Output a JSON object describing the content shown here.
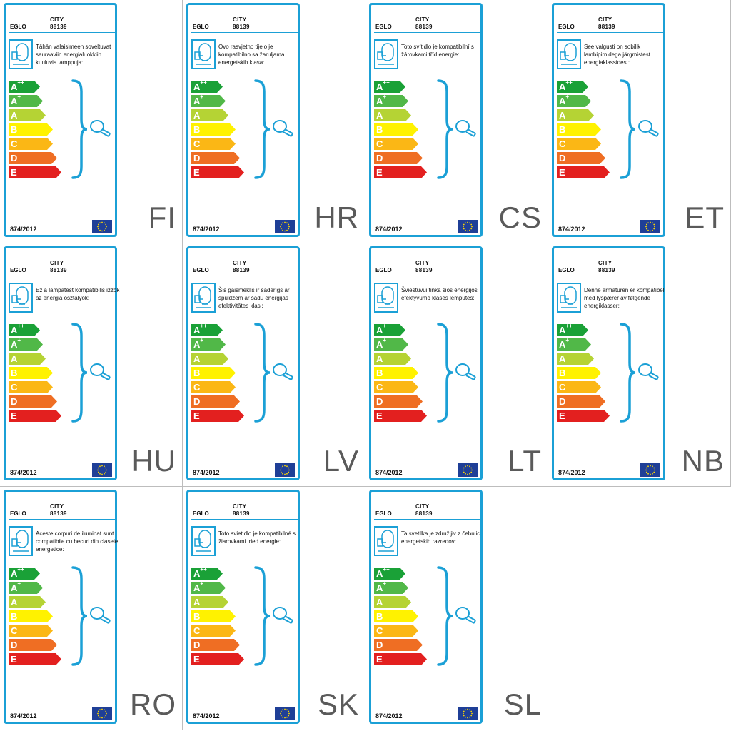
{
  "colors": {
    "frame": "#1ba0d6",
    "grid_line": "#bdbdbd",
    "code_text": "#5a5a5a",
    "eu_blue": "#1f3f97",
    "eu_star": "#ffd800"
  },
  "common": {
    "brand": "EGLO",
    "product_name": "CITY",
    "product_code": "88139",
    "regulation": "874/2012",
    "icons": {
      "lamp": "lamp-fixture-icon",
      "bulb": "light-bulb-icon",
      "brace": "bracket-icon",
      "eu_flag": "eu-flag-icon"
    },
    "energy_classes": [
      {
        "letter": "A",
        "sup": "++",
        "color": "#1aa137"
      },
      {
        "letter": "A",
        "sup": "+",
        "color": "#51b848"
      },
      {
        "letter": "A",
        "sup": "",
        "color": "#b5d334"
      },
      {
        "letter": "B",
        "sup": "",
        "color": "#fff200"
      },
      {
        "letter": "C",
        "sup": "",
        "color": "#fbb715"
      },
      {
        "letter": "D",
        "sup": "",
        "color": "#ef6e23"
      },
      {
        "letter": "E",
        "sup": "",
        "color": "#e3201f"
      }
    ]
  },
  "labels": [
    {
      "code": "FI",
      "text": "Tähän valaisimeen soveltuvat seuraaviin energialuokkiin kuuluvia lamppuja:"
    },
    {
      "code": "HR",
      "text": "Ovo rasvjetno tijelo je kompatibilno sa žaruljama energetskih klasa:"
    },
    {
      "code": "CS",
      "text": "Toto svítidlo je kompatibilní s žárovkami tříd energie:"
    },
    {
      "code": "ET",
      "text": "See valgusti on sobilik lambipirnidega järgmistest energiaklassidest:"
    },
    {
      "code": "HU",
      "text": "Ez a lámpatest kompatibilis izzók az energia osztályok:"
    },
    {
      "code": "LV",
      "text": "Šis gaismeklis ir saderīgs ar spuldzēm ar šādu enerģijas efektivitātes klasi:"
    },
    {
      "code": "LT",
      "text": "Šviestuvui tinka šios energijos efektyvumo klasės lemputės:"
    },
    {
      "code": "NB",
      "text": "Denne armaturen er kompatibel med lyspærer av følgende energiklasser:"
    },
    {
      "code": "RO",
      "text": "Aceste corpuri de iluminat sunt compatibile cu becuri din clasele energetice:"
    },
    {
      "code": "SK",
      "text": "Toto svietidlo je kompatibilné s žiarovkami tried energie:"
    },
    {
      "code": "SL",
      "text": "Ta svetilka je združljiv z čebulic energetskih razredov:"
    }
  ]
}
